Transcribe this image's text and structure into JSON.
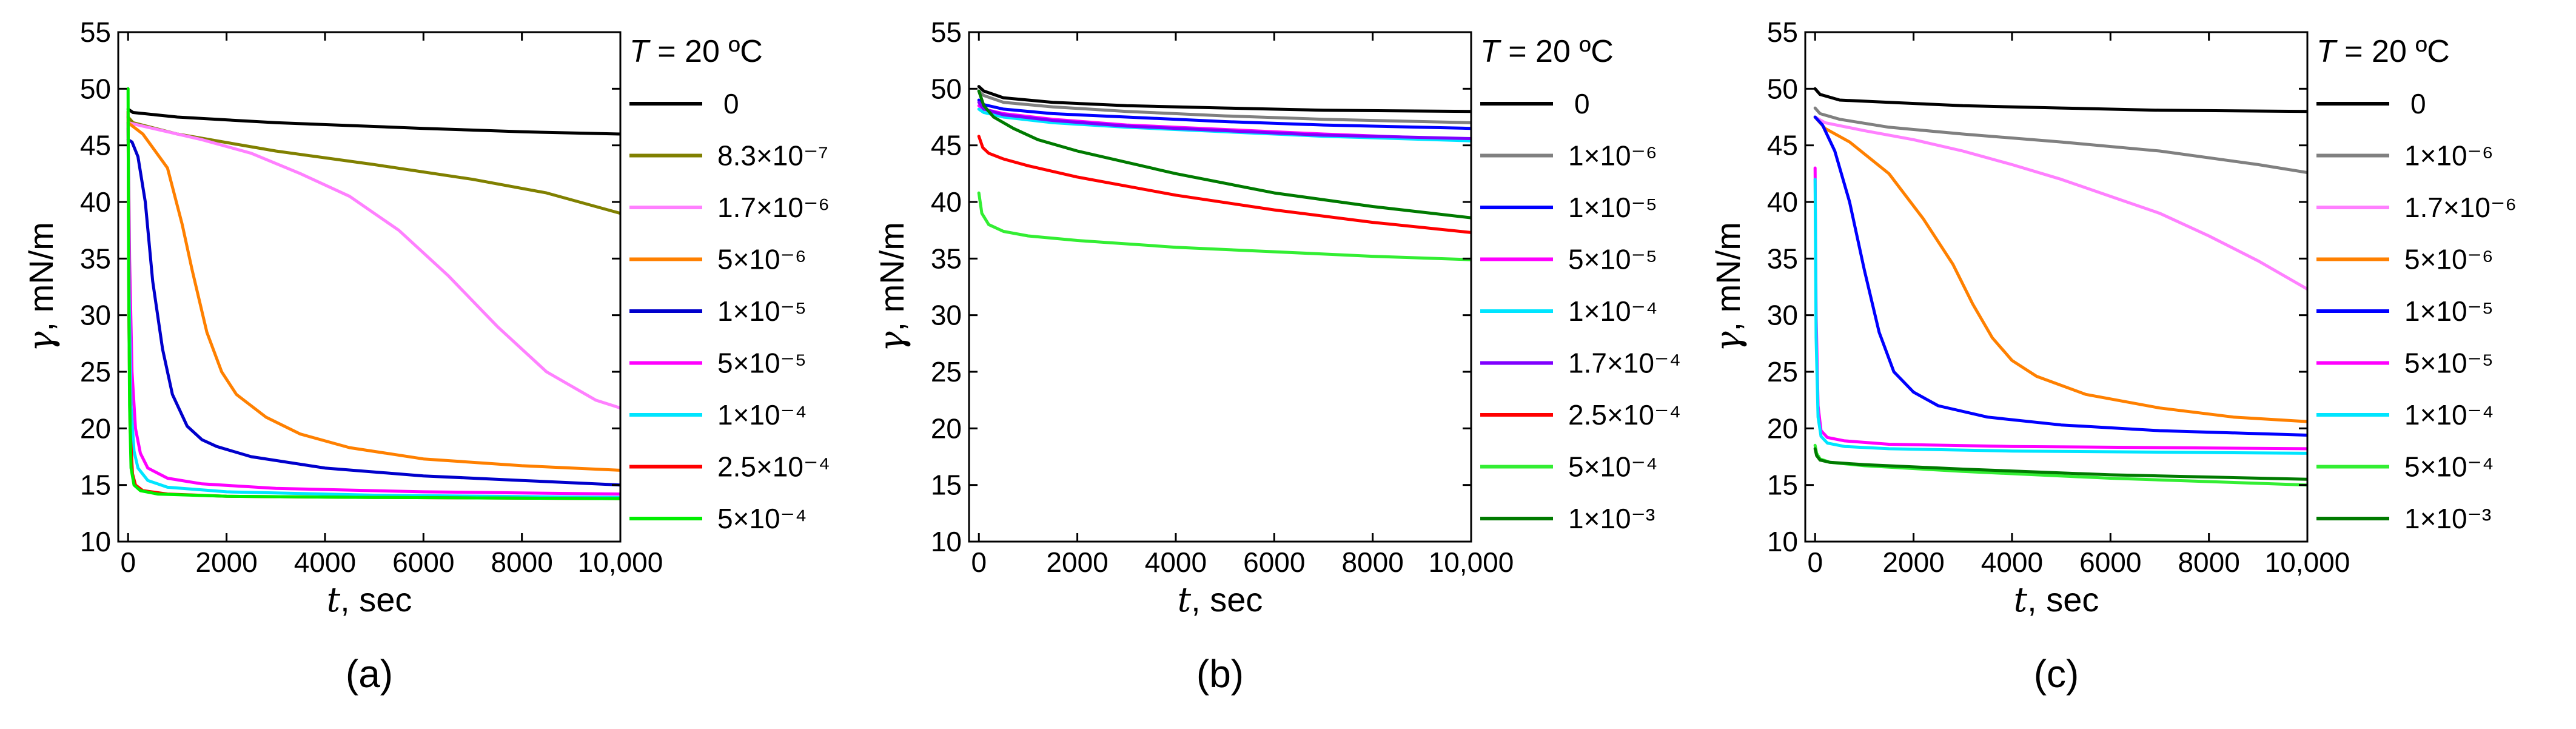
{
  "figure": {
    "legend_title": "T = 20 ºC",
    "legend_title_var": "T",
    "legend_title_rest": " = 20 ºC"
  },
  "chart_data": [
    {
      "type": "line",
      "panel_label": "(a)",
      "ylabel_var": "γ",
      "ylabel_unit": ", mN/m",
      "xlabel_var": "t",
      "xlabel_unit": ", sec",
      "xlim": [
        -200,
        10000
      ],
      "ylim": [
        10,
        55
      ],
      "xticks": [
        0,
        2000,
        4000,
        6000,
        8000,
        10000
      ],
      "xtick_labels": [
        "0",
        "2000",
        "4000",
        "6000",
        "8000",
        "10,000"
      ],
      "yticks": [
        10,
        15,
        20,
        25,
        30,
        35,
        40,
        45,
        50,
        55
      ],
      "ytick_labels": [
        "10",
        "15",
        "20",
        "25",
        "30",
        "35",
        "40",
        "45",
        "50",
        "55"
      ],
      "series": [
        {
          "name": "0",
          "color": "#000000",
          "x": [
            0,
            100,
            1000,
            3000,
            6000,
            8000,
            10000
          ],
          "y": [
            48.2,
            47.9,
            47.5,
            47.0,
            46.5,
            46.2,
            46.0
          ]
        },
        {
          "name": "8.3×10⁻⁷",
          "color": "#808000",
          "x": [
            0,
            100,
            1000,
            3000,
            5000,
            7000,
            8500,
            10000
          ],
          "y": [
            47.5,
            47.0,
            46.0,
            44.5,
            43.3,
            42.0,
            40.8,
            39.0
          ]
        },
        {
          "name": "1.7×10⁻⁶",
          "color": "#ff80ff",
          "x": [
            0,
            500,
            1500,
            2500,
            3500,
            4500,
            5500,
            6500,
            7500,
            8500,
            9500,
            10000
          ],
          "y": [
            47.0,
            46.5,
            45.5,
            44.3,
            42.5,
            40.5,
            37.5,
            33.5,
            29.0,
            25.0,
            22.5,
            21.8
          ]
        },
        {
          "name": "5×10⁻⁶",
          "color": "#ff8000",
          "x": [
            0,
            300,
            800,
            1100,
            1300,
            1600,
            1900,
            2200,
            2800,
            3500,
            4500,
            6000,
            8000,
            10000
          ],
          "y": [
            47.0,
            46.0,
            43.0,
            38.0,
            34.0,
            28.5,
            25.0,
            23.0,
            21.0,
            19.5,
            18.3,
            17.3,
            16.7,
            16.3
          ]
        },
        {
          "name": "1×10⁻⁵",
          "color": "#0000cc",
          "x": [
            0,
            80,
            200,
            350,
            500,
            700,
            900,
            1200,
            1500,
            1800,
            2500,
            4000,
            6000,
            8000,
            10000
          ],
          "y": [
            45.5,
            45.3,
            44.0,
            40.0,
            33.0,
            27.0,
            23.0,
            20.2,
            19.0,
            18.4,
            17.5,
            16.5,
            15.8,
            15.4,
            15.0
          ]
        },
        {
          "name": "5×10⁻⁵",
          "color": "#ff00ff",
          "x": [
            0,
            30,
            80,
            150,
            250,
            400,
            800,
            1500,
            3000,
            6000,
            10000
          ],
          "y": [
            46.5,
            35.0,
            25.0,
            20.0,
            17.8,
            16.5,
            15.6,
            15.1,
            14.7,
            14.4,
            14.2
          ]
        },
        {
          "name": "1×10⁻⁴",
          "color": "#00e5ff",
          "x": [
            0,
            20,
            60,
            120,
            200,
            400,
            800,
            2000,
            5000,
            10000
          ],
          "y": [
            47.0,
            32.0,
            22.0,
            18.0,
            16.5,
            15.4,
            14.8,
            14.4,
            14.1,
            13.9
          ]
        },
        {
          "name": "2.5×10⁻⁴",
          "color": "#ff0000",
          "x": [
            0,
            15,
            40,
            90,
            150,
            300,
            800,
            2000,
            5000,
            10000
          ],
          "y": [
            48.0,
            30.0,
            20.0,
            16.0,
            15.0,
            14.5,
            14.2,
            14.0,
            13.9,
            13.8
          ]
        },
        {
          "name": "5×10⁻⁴",
          "color": "#00ee00",
          "x": [
            0,
            10,
            30,
            60,
            120,
            250,
            600,
            2000,
            5000,
            10000
          ],
          "y": [
            50.0,
            35.0,
            22.0,
            16.5,
            15.0,
            14.5,
            14.2,
            14.0,
            13.9,
            13.8
          ]
        }
      ]
    },
    {
      "type": "line",
      "panel_label": "(b)",
      "ylabel_var": "γ",
      "ylabel_unit": ", mN/m",
      "xlabel_var": "t",
      "xlabel_unit": ", sec",
      "xlim": [
        -200,
        10000
      ],
      "ylim": [
        10,
        55
      ],
      "xticks": [
        0,
        2000,
        4000,
        6000,
        8000,
        10000
      ],
      "xtick_labels": [
        "0",
        "2000",
        "4000",
        "6000",
        "8000",
        "10,000"
      ],
      "yticks": [
        10,
        15,
        20,
        25,
        30,
        35,
        40,
        45,
        50,
        55
      ],
      "ytick_labels": [
        "10",
        "15",
        "20",
        "25",
        "30",
        "35",
        "40",
        "45",
        "50",
        "55"
      ],
      "series": [
        {
          "name": "0",
          "color": "#000000",
          "x": [
            0,
            100,
            500,
            1500,
            3000,
            5000,
            7000,
            10000
          ],
          "y": [
            50.2,
            49.8,
            49.2,
            48.8,
            48.5,
            48.3,
            48.1,
            48.0
          ]
        },
        {
          "name": "1×10⁻⁶",
          "color": "#808080",
          "x": [
            0,
            100,
            500,
            1500,
            3000,
            5000,
            7000,
            10000
          ],
          "y": [
            49.8,
            49.4,
            48.8,
            48.4,
            48.0,
            47.6,
            47.3,
            47.0
          ]
        },
        {
          "name": "1×10⁻⁵",
          "color": "#0000ff",
          "x": [
            0,
            100,
            500,
            1500,
            3000,
            5000,
            7000,
            10000
          ],
          "y": [
            49.0,
            48.6,
            48.2,
            47.8,
            47.5,
            47.1,
            46.8,
            46.5
          ]
        },
        {
          "name": "5×10⁻⁵",
          "color": "#ff00ff",
          "x": [
            0,
            100,
            500,
            1500,
            3000,
            5000,
            7000,
            10000
          ],
          "y": [
            48.5,
            48.2,
            47.8,
            47.3,
            46.8,
            46.4,
            46.0,
            45.5
          ]
        },
        {
          "name": "1×10⁻⁴",
          "color": "#00e5ff",
          "x": [
            0,
            100,
            500,
            1500,
            3000,
            5000,
            7000,
            10000
          ],
          "y": [
            48.2,
            47.9,
            47.5,
            47.0,
            46.6,
            46.2,
            45.8,
            45.4
          ]
        },
        {
          "name": "1.7×10⁻⁴",
          "color": "#8000ff",
          "x": [
            0,
            100,
            500,
            1500,
            3000,
            5000,
            7000,
            10000
          ],
          "y": [
            48.8,
            48.2,
            47.7,
            47.2,
            46.7,
            46.3,
            45.9,
            45.6
          ]
        },
        {
          "name": "2.5×10⁻⁴",
          "color": "#ff0000",
          "x": [
            0,
            80,
            200,
            500,
            1000,
            2000,
            4000,
            6000,
            8000,
            10000
          ],
          "y": [
            45.8,
            44.8,
            44.3,
            43.8,
            43.2,
            42.2,
            40.6,
            39.3,
            38.2,
            37.3
          ]
        },
        {
          "name": "5×10⁻⁴",
          "color": "#33ee33",
          "x": [
            0,
            60,
            200,
            500,
            1000,
            2000,
            4000,
            6000,
            8000,
            10000
          ],
          "y": [
            40.8,
            39.0,
            38.0,
            37.4,
            37.0,
            36.6,
            36.0,
            35.6,
            35.2,
            34.9
          ]
        },
        {
          "name": "1×10⁻³",
          "color": "#007a00",
          "x": [
            0,
            100,
            300,
            700,
            1200,
            2000,
            4000,
            6000,
            8000,
            10000
          ],
          "y": [
            49.8,
            48.5,
            47.5,
            46.5,
            45.5,
            44.5,
            42.5,
            40.8,
            39.6,
            38.6
          ]
        }
      ]
    },
    {
      "type": "line",
      "panel_label": "(c)",
      "ylabel_var": "γ",
      "ylabel_unit": ", mN/m",
      "xlabel_var": "t",
      "xlabel_unit": ", sec",
      "xlim": [
        -200,
        10000
      ],
      "ylim": [
        10,
        55
      ],
      "xticks": [
        0,
        2000,
        4000,
        6000,
        8000,
        10000
      ],
      "xtick_labels": [
        "0",
        "2000",
        "4000",
        "6000",
        "8000",
        "10,000"
      ],
      "yticks": [
        10,
        15,
        20,
        25,
        30,
        35,
        40,
        45,
        50,
        55
      ],
      "ytick_labels": [
        "10",
        "15",
        "20",
        "25",
        "30",
        "35",
        "40",
        "45",
        "50",
        "55"
      ],
      "series": [
        {
          "name": "0",
          "color": "#000000",
          "x": [
            0,
            100,
            500,
            1500,
            3000,
            5000,
            7000,
            10000
          ],
          "y": [
            50.0,
            49.5,
            49.0,
            48.8,
            48.5,
            48.3,
            48.1,
            48.0
          ]
        },
        {
          "name": "1×10⁻⁶",
          "color": "#808080",
          "x": [
            0,
            100,
            500,
            1500,
            3000,
            5000,
            7000,
            9000,
            10000
          ],
          "y": [
            48.3,
            47.8,
            47.3,
            46.6,
            46.0,
            45.3,
            44.5,
            43.3,
            42.6
          ]
        },
        {
          "name": "1.7×10⁻⁶",
          "color": "#ff80ff",
          "x": [
            0,
            200,
            1000,
            2000,
            3000,
            4000,
            5000,
            6000,
            7000,
            8000,
            9000,
            10000
          ],
          "y": [
            47.5,
            47.0,
            46.3,
            45.5,
            44.5,
            43.3,
            42.0,
            40.5,
            39.0,
            37.0,
            34.8,
            32.3
          ]
        },
        {
          "name": "5×10⁻⁶",
          "color": "#ff8000",
          "x": [
            0,
            200,
            700,
            1500,
            2200,
            2800,
            3200,
            3600,
            4000,
            4500,
            5500,
            7000,
            8500,
            10000
          ],
          "y": [
            47.5,
            46.5,
            45.3,
            42.5,
            38.5,
            34.5,
            31.0,
            28.0,
            26.0,
            24.6,
            23.0,
            21.8,
            21.0,
            20.6
          ]
        },
        {
          "name": "1×10⁻⁵",
          "color": "#0000ff",
          "x": [
            0,
            150,
            400,
            700,
            1000,
            1300,
            1600,
            2000,
            2500,
            3500,
            5000,
            7000,
            10000
          ],
          "y": [
            47.5,
            46.8,
            44.5,
            40.0,
            34.0,
            28.5,
            25.0,
            23.2,
            22.0,
            21.0,
            20.3,
            19.8,
            19.4
          ]
        },
        {
          "name": "5×10⁻⁵",
          "color": "#ff00ff",
          "x": [
            0,
            20,
            60,
            120,
            250,
            600,
            1500,
            4000,
            10000
          ],
          "y": [
            43.0,
            30.0,
            22.0,
            19.8,
            19.2,
            18.9,
            18.6,
            18.4,
            18.2
          ]
        },
        {
          "name": "1×10⁻⁴",
          "color": "#00e5ff",
          "x": [
            0,
            20,
            60,
            120,
            250,
            600,
            1500,
            4000,
            10000
          ],
          "y": [
            42.0,
            28.0,
            21.0,
            19.3,
            18.7,
            18.4,
            18.2,
            18.0,
            17.8
          ]
        },
        {
          "name": "5×10⁻⁴",
          "color": "#33ee33",
          "x": [
            0,
            30,
            100,
            300,
            1000,
            3000,
            6000,
            10000
          ],
          "y": [
            18.5,
            17.8,
            17.3,
            17.0,
            16.7,
            16.2,
            15.6,
            15.0
          ]
        },
        {
          "name": "1×10⁻³",
          "color": "#007a00",
          "x": [
            0,
            30,
            100,
            300,
            1000,
            3000,
            6000,
            10000
          ],
          "y": [
            18.2,
            17.6,
            17.2,
            17.0,
            16.8,
            16.4,
            15.9,
            15.5
          ]
        }
      ]
    }
  ]
}
